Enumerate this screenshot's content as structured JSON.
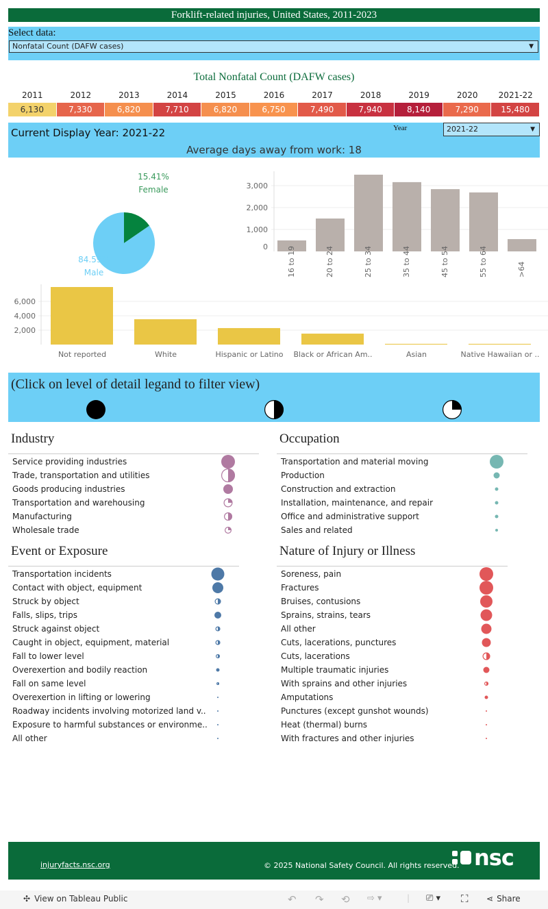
{
  "title": "Forklift-related injuries, United States, 2011-2023",
  "select": {
    "label": "Select data:",
    "value": "Nonfatal Count (DAFW cases)"
  },
  "summary": {
    "title": "Total Nonfatal Count (DAFW cases)",
    "years": [
      "2011",
      "2012",
      "2013",
      "2014",
      "2015",
      "2016",
      "2017",
      "2018",
      "2019",
      "2020",
      "2021-22"
    ],
    "values": [
      "6,130",
      "7,330",
      "6,820",
      "7,710",
      "6,820",
      "6,750",
      "7,490",
      "7,940",
      "8,140",
      "7,290",
      "15,480"
    ],
    "colors": [
      "#f3d26b",
      "#e6654b",
      "#f58f4e",
      "#d34443",
      "#f58f4e",
      "#f8934e",
      "#e25a49",
      "#c83140",
      "#b51f3b",
      "#ea6a4c",
      "#d34443"
    ]
  },
  "display": {
    "current": "Current Display Year: 2021-22",
    "year_label": "Year",
    "year_value": "2021-22",
    "avg": "Average days away from work: 18"
  },
  "chart_data": [
    {
      "type": "pie",
      "slices": [
        {
          "name": "Female",
          "value": 15.41,
          "label": "15.41%",
          "color": "#05833e"
        },
        {
          "name": "Male",
          "value": 84.59,
          "label": "84.59%",
          "color": "#6dcff6"
        }
      ]
    },
    {
      "type": "bar",
      "categories": [
        "16 to 19",
        "20 to 24",
        "25 to 34",
        "35 to 44",
        "45 to 54",
        "55 to 64",
        ">64"
      ],
      "values": [
        500,
        1500,
        3500,
        3160,
        2840,
        2690,
        560
      ],
      "yticks": [
        "0",
        "1,000",
        "2,000",
        "3,000"
      ],
      "ylim": [
        0,
        3700
      ],
      "color": "#b9b0ab",
      "grid": true
    },
    {
      "type": "bar",
      "categories": [
        "Not reported",
        "White",
        "Hispanic or Latino",
        "Black or African Am..",
        "Asian",
        "Native Hawaiian or .."
      ],
      "values": [
        8000,
        3520,
        2290,
        1520,
        100,
        100
      ],
      "yticks": [
        "2,000",
        "4,000",
        "6,000"
      ],
      "ylim": [
        0,
        8000
      ],
      "color": "#eac645",
      "grid": true
    }
  ],
  "filter": {
    "text": "(Click on level of detail legand to filter view)",
    "legend": [
      "full",
      "half",
      "quarter"
    ]
  },
  "industry": {
    "title": "Industry",
    "color": "#b07aa1",
    "items": [
      {
        "label": "Service providing industries",
        "size": 1,
        "shape": "full"
      },
      {
        "label": "Trade, transportation and utilities",
        "size": 1,
        "shape": "half"
      },
      {
        "label": "Goods producing industries",
        "size": 0.7,
        "shape": "full"
      },
      {
        "label": "Transportation and warehousing",
        "size": 0.65,
        "shape": "quarter"
      },
      {
        "label": "Manufacturing",
        "size": 0.6,
        "shape": "half"
      },
      {
        "label": "Wholesale trade",
        "size": 0.5,
        "shape": "quarter"
      }
    ]
  },
  "occupation": {
    "title": "Occupation",
    "color": "#76b7b2",
    "items": [
      {
        "label": "Transportation and material moving",
        "size": 1,
        "shape": "full"
      },
      {
        "label": "Production",
        "size": 0.45,
        "shape": "full"
      },
      {
        "label": "Construction and extraction",
        "size": 0.25,
        "shape": "full"
      },
      {
        "label": "Installation, maintenance, and repair",
        "size": 0.25,
        "shape": "full"
      },
      {
        "label": "Office and administrative support",
        "size": 0.25,
        "shape": "full"
      },
      {
        "label": "Sales and related",
        "size": 0.18,
        "shape": "full"
      }
    ]
  },
  "event": {
    "title": "Event or Exposure",
    "color": "#4e79a7",
    "items": [
      {
        "label": "Transportation incidents",
        "size": 0.95,
        "shape": "full"
      },
      {
        "label": "Contact with object, equipment",
        "size": 0.8,
        "shape": "full"
      },
      {
        "label": "Struck by object",
        "size": 0.45,
        "shape": "half"
      },
      {
        "label": "Falls, slips, trips",
        "size": 0.5,
        "shape": "full"
      },
      {
        "label": "Struck against object",
        "size": 0.35,
        "shape": "half"
      },
      {
        "label": "Caught in object, equipment, material",
        "size": 0.35,
        "shape": "half"
      },
      {
        "label": "Fall to lower level",
        "size": 0.3,
        "shape": "half"
      },
      {
        "label": "Overexertion and bodily reaction",
        "size": 0.25,
        "shape": "full"
      },
      {
        "label": "Fall on same level",
        "size": 0.2,
        "shape": "half"
      },
      {
        "label": "Overexertion in lifting or lowering",
        "size": 0.1,
        "shape": "full"
      },
      {
        "label": "Roadway incidents involving motorized land v..",
        "size": 0.1,
        "shape": "full"
      },
      {
        "label": "Exposure to harmful substances or environme..",
        "size": 0.1,
        "shape": "full"
      },
      {
        "label": "All other",
        "size": 0.1,
        "shape": "full"
      }
    ]
  },
  "nature": {
    "title": "Nature of Injury or Illness",
    "color": "#e15759",
    "items": [
      {
        "label": "Soreness, pain",
        "size": 1,
        "shape": "full"
      },
      {
        "label": "Fractures",
        "size": 1,
        "shape": "full"
      },
      {
        "label": "Bruises, contusions",
        "size": 0.9,
        "shape": "full"
      },
      {
        "label": "Sprains, strains, tears",
        "size": 0.85,
        "shape": "full"
      },
      {
        "label": "All other",
        "size": 0.75,
        "shape": "full"
      },
      {
        "label": "Cuts, lacerations, punctures",
        "size": 0.65,
        "shape": "full"
      },
      {
        "label": "Cuts, lacerations",
        "size": 0.55,
        "shape": "half"
      },
      {
        "label": "Multiple traumatic injuries",
        "size": 0.45,
        "shape": "full"
      },
      {
        "label": "With sprains and other injuries",
        "size": 0.3,
        "shape": "half"
      },
      {
        "label": "Amputations",
        "size": 0.25,
        "shape": "full"
      },
      {
        "label": "Punctures (except gunshot wounds)",
        "size": 0.1,
        "shape": "full"
      },
      {
        "label": "Heat (thermal) burns",
        "size": 0.1,
        "shape": "full"
      },
      {
        "label": "With fractures and other injuries",
        "size": 0.1,
        "shape": "full"
      }
    ]
  },
  "footer": {
    "link": "injuryfacts.nsc.org",
    "copyright": "© 2025 National Safety Council. All rights reserved.",
    "logo": "nsc"
  },
  "toolbar": {
    "view": "View on Tableau Public",
    "share": "Share"
  }
}
